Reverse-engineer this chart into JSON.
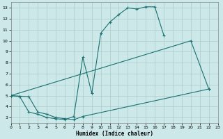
{
  "xlabel": "Humidex (Indice chaleur)",
  "background_color": "#cce8e8",
  "grid_color": "#aacccc",
  "line_color": "#1a7070",
  "xlim": [
    0,
    23
  ],
  "ylim": [
    2.5,
    13.5
  ],
  "xticks": [
    0,
    1,
    2,
    3,
    4,
    5,
    6,
    7,
    8,
    9,
    10,
    11,
    12,
    13,
    14,
    15,
    16,
    17,
    18,
    19,
    20,
    21,
    22,
    23
  ],
  "yticks": [
    3,
    4,
    5,
    6,
    7,
    8,
    9,
    10,
    11,
    12,
    13
  ],
  "line1_x": [
    0,
    1,
    2,
    3,
    4,
    5,
    6,
    7,
    8,
    9,
    10,
    11,
    12,
    13,
    14,
    15,
    16,
    17
  ],
  "line1_y": [
    5.0,
    4.9,
    3.5,
    3.3,
    3.0,
    2.9,
    2.8,
    3.1,
    8.5,
    5.2,
    10.7,
    11.7,
    12.4,
    13.0,
    12.9,
    13.1,
    13.1,
    10.5
  ],
  "line2_x": [
    0,
    20,
    22
  ],
  "line2_y": [
    5.0,
    10.0,
    5.6
  ],
  "line3_x": [
    0,
    2,
    3,
    4,
    5,
    6,
    7,
    8,
    22
  ],
  "line3_y": [
    5.0,
    4.9,
    3.5,
    3.3,
    3.0,
    2.9,
    2.8,
    3.1,
    5.6
  ]
}
